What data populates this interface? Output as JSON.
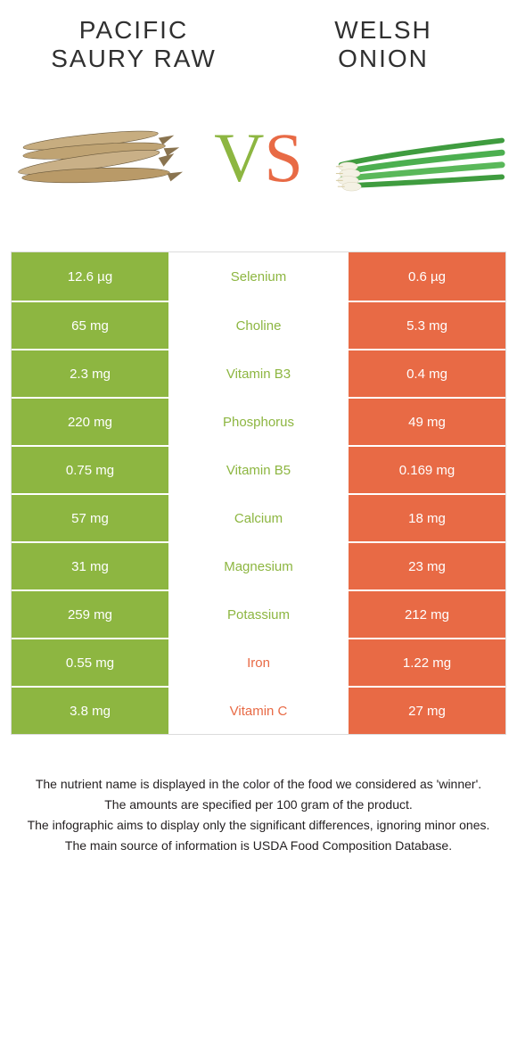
{
  "colors": {
    "left": "#8db641",
    "right": "#e86a45",
    "border": "#dcdcdc",
    "text_dark": "#303030",
    "note_text": "#231f20"
  },
  "header": {
    "left_title": "Pacific saury raw",
    "right_title": "Welsh onion",
    "vs_v": "V",
    "vs_s": "S"
  },
  "rows": [
    {
      "name": "Selenium",
      "left": "12.6 µg",
      "right": "0.6 µg",
      "winner": "left"
    },
    {
      "name": "Choline",
      "left": "65 mg",
      "right": "5.3 mg",
      "winner": "left"
    },
    {
      "name": "Vitamin B3",
      "left": "2.3 mg",
      "right": "0.4 mg",
      "winner": "left"
    },
    {
      "name": "Phosphorus",
      "left": "220 mg",
      "right": "49 mg",
      "winner": "left"
    },
    {
      "name": "Vitamin B5",
      "left": "0.75 mg",
      "right": "0.169 mg",
      "winner": "left"
    },
    {
      "name": "Calcium",
      "left": "57 mg",
      "right": "18 mg",
      "winner": "left"
    },
    {
      "name": "Magnesium",
      "left": "31 mg",
      "right": "23 mg",
      "winner": "left"
    },
    {
      "name": "Potassium",
      "left": "259 mg",
      "right": "212 mg",
      "winner": "left"
    },
    {
      "name": "Iron",
      "left": "0.55 mg",
      "right": "1.22 mg",
      "winner": "right"
    },
    {
      "name": "Vitamin C",
      "left": "3.8 mg",
      "right": "27 mg",
      "winner": "right"
    }
  ],
  "notes": [
    "The nutrient name is displayed in the color of the food we considered as 'winner'.",
    "The amounts are specified per 100 gram of the product.",
    "The infographic aims to display only the significant differences, ignoring minor ones.",
    "The main source of information is USDA Food Composition Database."
  ]
}
